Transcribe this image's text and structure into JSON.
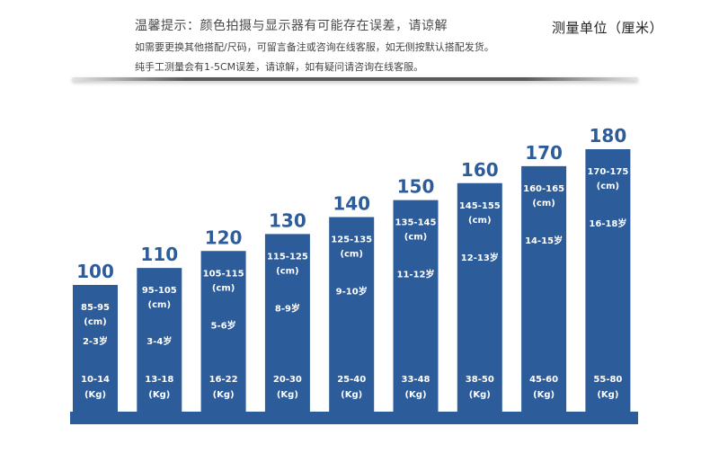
{
  "notice": {
    "line1": "温馨提示：颜色拍摄与显示器有可能存在误差，请谅解",
    "line2": "如需要更换其他搭配/尺码，可留言备注或咨询在线客服，如无侧按默认搭配发货。",
    "line3": "纯手工测量会有1-5CM误差，请谅解，如有疑问请咨询在线客服。"
  },
  "unit_label": "测量单位（厘米）",
  "colors": {
    "bar": "#2d5c9a",
    "label": "#2d5c9a",
    "text_on_bar": "#ffffff"
  },
  "chart_data": {
    "type": "bar",
    "categories": [
      "100",
      "110",
      "120",
      "130",
      "140",
      "150",
      "160",
      "170",
      "180"
    ],
    "values": [
      100,
      110,
      120,
      130,
      140,
      150,
      160,
      170,
      180
    ],
    "ylim": [
      0,
      180
    ],
    "grid": false,
    "legend": "none",
    "height_cm": [
      "85-95",
      "95-105",
      "105-115",
      "115-125",
      "125-135",
      "135-145",
      "145-155",
      "160-165",
      "170-175"
    ],
    "height_unit": "(cm)",
    "age": [
      "2-3岁",
      "3-4岁",
      "5-6岁",
      "8-9岁",
      "9-10岁",
      "11-12岁",
      "12-13岁",
      "14-15岁",
      "16-18岁"
    ],
    "weight_kg": [
      "10-14",
      "13-18",
      "16-22",
      "20-30",
      "25-40",
      "33-48",
      "38-50",
      "45-60",
      "55-80"
    ],
    "weight_unit": "(Kg)"
  }
}
